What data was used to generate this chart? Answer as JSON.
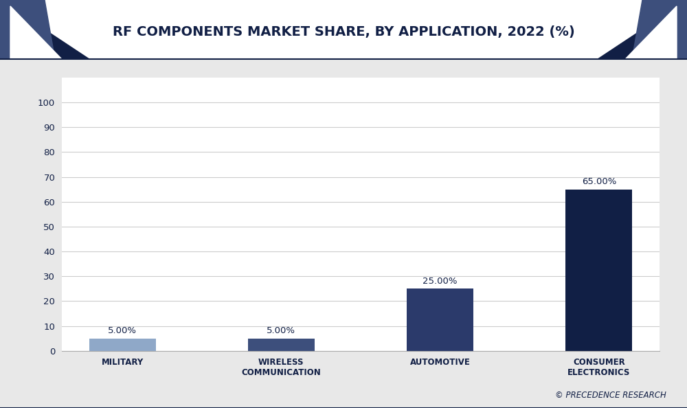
{
  "title": "RF COMPONENTS MARKET SHARE, BY APPLICATION, 2022 (%)",
  "categories": [
    "MILITARY",
    "WIRELESS\nCOMMUNICATION",
    "AUTOMOTIVE",
    "CONSUMER\nELECTRONICS"
  ],
  "values": [
    5.0,
    5.0,
    25.0,
    65.0
  ],
  "bar_colors": [
    "#8fa8c8",
    "#3d4f7c",
    "#2b3a6b",
    "#111f45"
  ],
  "value_labels": [
    "5.00%",
    "5.00%",
    "25.00%",
    "65.00%"
  ],
  "ylim": [
    0,
    110
  ],
  "yticks": [
    0,
    10,
    20,
    30,
    40,
    50,
    60,
    70,
    80,
    90,
    100
  ],
  "background_color": "#e8e8e8",
  "plot_background_color": "#ffffff",
  "title_fontsize": 14,
  "title_color": "#111f45",
  "bar_width": 0.42,
  "grid_color": "#cccccc",
  "label_fontsize": 8.5,
  "value_fontsize": 9.5,
  "footer_text": "© PRECEDENCE RESEARCH",
  "corner_dark_color": "#111f45",
  "corner_mid_color": "#3d4f7c",
  "header_line_color": "#111f45"
}
